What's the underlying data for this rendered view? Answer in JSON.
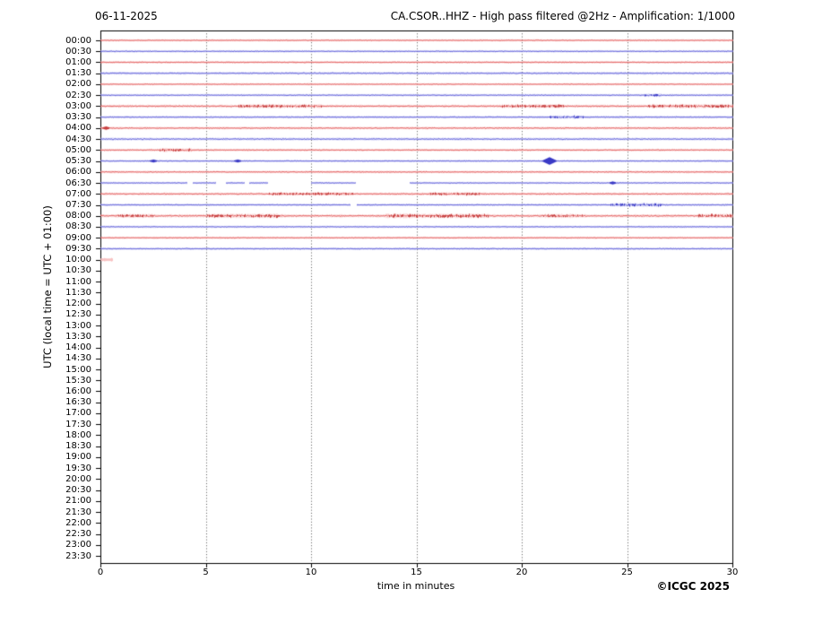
{
  "chart_data": {
    "type": "line",
    "subtype": "helicorder-seismogram",
    "date": "06-11-2025",
    "title": "CA.CSOR..HHZ - High pass filtered @2Hz - Amplification: 1/1000",
    "copyright": "©ICGC 2025",
    "x_axis": {
      "label": "time in minutes",
      "range": [
        0,
        30
      ],
      "ticks": [
        0,
        5,
        10,
        15,
        20,
        25,
        30
      ],
      "gridlines_at": [
        5,
        10,
        15,
        20,
        25
      ],
      "grid_style": "dotted"
    },
    "y_axis": {
      "label": "UTC (local time = UTC + 01:00)",
      "minutes_per_row": 30,
      "first_row": "00:00",
      "last_row": "23:30"
    },
    "palette": {
      "frame": "#000000",
      "grid": "#555555",
      "red": {
        "main": "#e25f5f",
        "light": "#f5aeae",
        "dark": "#c22f2f"
      },
      "blue": {
        "main": "#6060d8",
        "light": "#b2b2f0",
        "dark": "#2a2ac0"
      }
    },
    "rows": [
      {
        "label": "00:00",
        "color": "red",
        "noise": 0.7,
        "segments": [
          [
            0,
            30
          ]
        ]
      },
      {
        "label": "00:30",
        "color": "blue",
        "noise": 0.7,
        "segments": [
          [
            0,
            30
          ]
        ]
      },
      {
        "label": "01:00",
        "color": "red",
        "noise": 0.75,
        "segments": [
          [
            0,
            30
          ]
        ]
      },
      {
        "label": "01:30",
        "color": "blue",
        "noise": 1.0,
        "segments": [
          [
            0,
            30
          ]
        ]
      },
      {
        "label": "02:00",
        "color": "red",
        "noise": 0.7,
        "segments": [
          [
            0,
            30
          ]
        ]
      },
      {
        "label": "02:30",
        "color": "blue",
        "noise": 0.8,
        "segments": [
          [
            0,
            30
          ]
        ],
        "bursts": [
          [
            25.8,
            26.6,
            0.7
          ]
        ]
      },
      {
        "label": "03:00",
        "color": "red",
        "noise": 1.1,
        "segments": [
          [
            0,
            30
          ]
        ],
        "bursts": [
          [
            6.5,
            10.5,
            0.7
          ],
          [
            19.0,
            22.0,
            0.7
          ],
          [
            26.0,
            30.0,
            0.8
          ]
        ]
      },
      {
        "label": "03:30",
        "color": "blue",
        "noise": 0.85,
        "segments": [
          [
            0,
            30
          ]
        ],
        "bursts": [
          [
            21.3,
            22.9,
            1.0
          ]
        ]
      },
      {
        "label": "04:00",
        "color": "red",
        "noise": 0.9,
        "segments": [
          [
            0,
            30
          ]
        ],
        "spikes": [
          [
            0.25,
            1.8
          ]
        ]
      },
      {
        "label": "04:30",
        "color": "blue",
        "noise": 1.05,
        "segments": [
          [
            0,
            30
          ]
        ]
      },
      {
        "label": "05:00",
        "color": "red",
        "noise": 0.8,
        "segments": [
          [
            0,
            30
          ]
        ],
        "bursts": [
          [
            2.8,
            4.3,
            0.9
          ]
        ]
      },
      {
        "label": "05:30",
        "color": "blue",
        "noise": 0.7,
        "segments": [
          [
            0,
            30
          ]
        ],
        "spikes": [
          [
            2.5,
            1.6
          ],
          [
            6.5,
            1.6
          ],
          [
            21.3,
            4.2
          ]
        ]
      },
      {
        "label": "06:00",
        "color": "red",
        "noise": 0.85,
        "segments": [
          [
            0,
            30
          ]
        ]
      },
      {
        "label": "06:30",
        "color": "blue",
        "noise": 0.7,
        "segments": [
          [
            0,
            4.1
          ],
          [
            4.4,
            5.45
          ],
          [
            5.95,
            6.8
          ],
          [
            7.05,
            7.9
          ],
          [
            10.0,
            12.1
          ],
          [
            14.7,
            30
          ]
        ],
        "spikes": [
          [
            24.3,
            1.6
          ]
        ]
      },
      {
        "label": "07:00",
        "color": "red",
        "noise": 1.0,
        "segments": [
          [
            0,
            30
          ]
        ],
        "bursts": [
          [
            8.0,
            12.0,
            0.5
          ],
          [
            15.5,
            18.0,
            0.6
          ]
        ]
      },
      {
        "label": "07:30",
        "color": "blue",
        "noise": 0.8,
        "segments": [
          [
            0,
            11.83
          ],
          [
            12.17,
            30
          ]
        ],
        "bursts": [
          [
            24.2,
            26.6,
            1.1
          ]
        ]
      },
      {
        "label": "08:00",
        "color": "red",
        "noise": 1.2,
        "segments": [
          [
            0,
            30
          ]
        ],
        "bursts": [
          [
            0.8,
            2.5,
            0.7
          ],
          [
            5.0,
            8.5,
            0.9
          ],
          [
            13.5,
            18.5,
            1.0
          ],
          [
            21.0,
            23.0,
            0.8
          ],
          [
            28.3,
            30.0,
            0.9
          ]
        ]
      },
      {
        "label": "08:30",
        "color": "blue",
        "noise": 0.75,
        "segments": [
          [
            0,
            30
          ]
        ]
      },
      {
        "label": "09:00",
        "color": "red",
        "noise": 0.7,
        "segments": [
          [
            0,
            30
          ]
        ]
      },
      {
        "label": "09:30",
        "color": "blue",
        "noise": 0.8,
        "segments": [
          [
            0,
            30
          ]
        ]
      },
      {
        "label": "10:00",
        "color": "red",
        "noise": 1.3,
        "segments": [
          [
            0,
            0.55
          ]
        ],
        "soft": true
      },
      {
        "label": "10:30",
        "color": "blue",
        "noise": 0,
        "segments": []
      },
      {
        "label": "11:00",
        "color": "red",
        "noise": 0,
        "segments": []
      },
      {
        "label": "11:30",
        "color": "blue",
        "noise": 0,
        "segments": []
      },
      {
        "label": "12:00",
        "color": "red",
        "noise": 0,
        "segments": []
      },
      {
        "label": "12:30",
        "color": "blue",
        "noise": 0,
        "segments": []
      },
      {
        "label": "13:00",
        "color": "red",
        "noise": 0,
        "segments": []
      },
      {
        "label": "13:30",
        "color": "blue",
        "noise": 0,
        "segments": []
      },
      {
        "label": "14:00",
        "color": "red",
        "noise": 0,
        "segments": []
      },
      {
        "label": "14:30",
        "color": "blue",
        "noise": 0,
        "segments": []
      },
      {
        "label": "15:00",
        "color": "red",
        "noise": 0,
        "segments": []
      },
      {
        "label": "15:30",
        "color": "blue",
        "noise": 0,
        "segments": []
      },
      {
        "label": "16:00",
        "color": "red",
        "noise": 0,
        "segments": []
      },
      {
        "label": "16:30",
        "color": "blue",
        "noise": 0,
        "segments": []
      },
      {
        "label": "17:00",
        "color": "red",
        "noise": 0,
        "segments": []
      },
      {
        "label": "17:30",
        "color": "blue",
        "noise": 0,
        "segments": []
      },
      {
        "label": "18:00",
        "color": "red",
        "noise": 0,
        "segments": []
      },
      {
        "label": "18:30",
        "color": "blue",
        "noise": 0,
        "segments": []
      },
      {
        "label": "19:00",
        "color": "red",
        "noise": 0,
        "segments": []
      },
      {
        "label": "19:30",
        "color": "blue",
        "noise": 0,
        "segments": []
      },
      {
        "label": "20:00",
        "color": "red",
        "noise": 0,
        "segments": []
      },
      {
        "label": "20:30",
        "color": "blue",
        "noise": 0,
        "segments": []
      },
      {
        "label": "21:00",
        "color": "red",
        "noise": 0,
        "segments": []
      },
      {
        "label": "21:30",
        "color": "blue",
        "noise": 0,
        "segments": []
      },
      {
        "label": "22:00",
        "color": "red",
        "noise": 0,
        "segments": []
      },
      {
        "label": "22:30",
        "color": "blue",
        "noise": 0,
        "segments": []
      },
      {
        "label": "23:00",
        "color": "red",
        "noise": 0,
        "segments": []
      },
      {
        "label": "23:30",
        "color": "blue",
        "noise": 0,
        "segments": []
      }
    ]
  }
}
